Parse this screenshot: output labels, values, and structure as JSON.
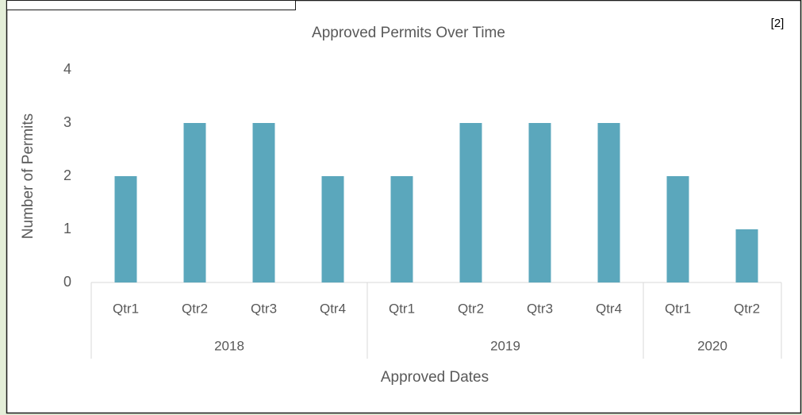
{
  "chart_data": {
    "type": "bar",
    "title": "Approved Permits Over Time",
    "annotation": "[2]",
    "y_label": "Number of Permits",
    "x_label": "Approved Dates",
    "categories": [
      "Qtr1",
      "Qtr2",
      "Qtr3",
      "Qtr4",
      "Qtr1",
      "Qtr2",
      "Qtr3",
      "Qtr4",
      "Qtr1",
      "Qtr2"
    ],
    "category_groups": [
      "2018",
      "2018",
      "2018",
      "2018",
      "2019",
      "2019",
      "2019",
      "2019",
      "2020",
      "2020"
    ],
    "values": [
      2,
      3,
      3,
      2,
      2,
      3,
      3,
      3,
      2,
      1
    ],
    "color": "#5ba7bc",
    "ylim": [
      0,
      4
    ],
    "yticks": [
      0,
      1,
      2,
      3,
      4
    ],
    "grid": false
  }
}
